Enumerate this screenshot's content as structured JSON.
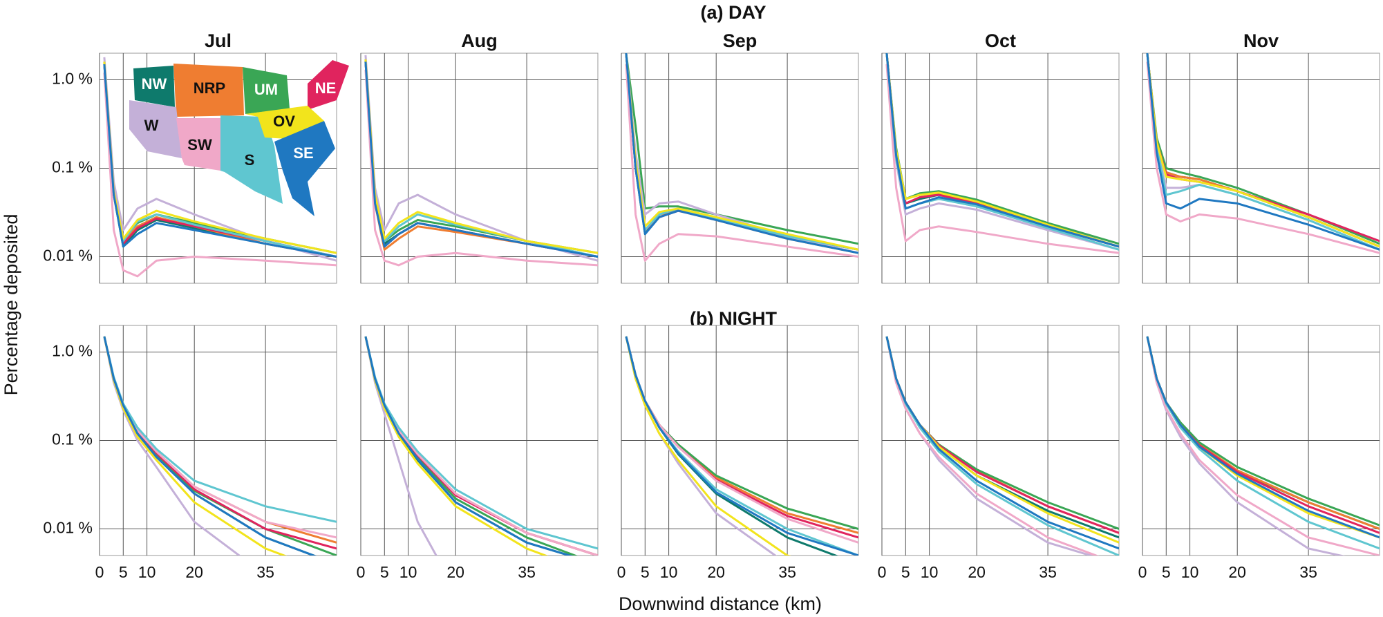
{
  "figure": {
    "rows": [
      "(a)  DAY",
      "(b)  NIGHT"
    ],
    "columns": [
      "Jul",
      "Aug",
      "Sep",
      "Oct",
      "Nov"
    ],
    "xlabel": "Downwind distance (km)",
    "ylabel": "Percentage deposited",
    "xlim": [
      0,
      50
    ],
    "xticks": [
      0,
      5,
      10,
      20,
      35
    ],
    "ylim": [
      0.005,
      2
    ],
    "yticks": [
      {
        "value": 0.01,
        "label": "0.01 %"
      },
      {
        "value": 0.1,
        "label": "0.1 %"
      },
      {
        "value": 1,
        "label": "1.0 %"
      }
    ],
    "log_y": true,
    "grid": true,
    "x": [
      1,
      3,
      5,
      8,
      12,
      20,
      35,
      50
    ]
  },
  "regions": [
    {
      "name": "NW",
      "color": "#0e7a6c"
    },
    {
      "name": "NRP",
      "color": "#ef7d31"
    },
    {
      "name": "UM",
      "color": "#3aa655"
    },
    {
      "name": "NE",
      "color": "#e0245e"
    },
    {
      "name": "W",
      "color": "#c4b0d8"
    },
    {
      "name": "SW",
      "color": "#f0a8c8"
    },
    {
      "name": "S",
      "color": "#5fc6d0"
    },
    {
      "name": "OV",
      "color": "#f2e41c"
    },
    {
      "name": "SE",
      "color": "#1f78c1"
    }
  ],
  "chart_data": [
    {
      "type": "line",
      "series": [
        {
          "values": [
            1.5,
            0.05,
            0.013,
            0.02,
            0.026,
            0.021,
            0.014,
            0.01
          ]
        },
        {
          "values": [
            1.6,
            0.05,
            0.015,
            0.022,
            0.028,
            0.022,
            0.014,
            0.01
          ]
        },
        {
          "values": [
            1.6,
            0.055,
            0.016,
            0.024,
            0.03,
            0.024,
            0.016,
            0.011
          ]
        },
        {
          "values": [
            1.5,
            0.05,
            0.014,
            0.021,
            0.027,
            0.022,
            0.015,
            0.01
          ]
        },
        {
          "values": [
            1.8,
            0.07,
            0.02,
            0.035,
            0.045,
            0.03,
            0.015,
            0.009
          ]
        },
        {
          "values": [
            1.2,
            0.02,
            0.007,
            0.006,
            0.009,
            0.01,
            0.009,
            0.008
          ]
        },
        {
          "values": [
            1.5,
            0.05,
            0.015,
            0.025,
            0.03,
            0.023,
            0.015,
            0.01
          ]
        },
        {
          "values": [
            1.6,
            0.055,
            0.016,
            0.026,
            0.033,
            0.025,
            0.016,
            0.011
          ]
        },
        {
          "values": [
            1.5,
            0.05,
            0.013,
            0.018,
            0.024,
            0.02,
            0.014,
            0.01
          ]
        }
      ]
    },
    {
      "type": "line",
      "series": [
        {
          "values": [
            1.6,
            0.04,
            0.014,
            0.018,
            0.024,
            0.02,
            0.014,
            0.01
          ]
        },
        {
          "values": [
            1.7,
            0.04,
            0.012,
            0.016,
            0.022,
            0.019,
            0.014,
            0.01
          ]
        },
        {
          "values": [
            1.7,
            0.045,
            0.015,
            0.02,
            0.026,
            0.022,
            0.015,
            0.011
          ]
        },
        {
          "values": [
            1.6,
            0.04,
            0.013,
            0.018,
            0.024,
            0.02,
            0.014,
            0.01
          ]
        },
        {
          "values": [
            1.9,
            0.06,
            0.02,
            0.04,
            0.05,
            0.03,
            0.015,
            0.009
          ]
        },
        {
          "values": [
            1.3,
            0.02,
            0.009,
            0.008,
            0.01,
            0.011,
            0.009,
            0.008
          ]
        },
        {
          "values": [
            1.6,
            0.045,
            0.015,
            0.022,
            0.03,
            0.023,
            0.015,
            0.01
          ]
        },
        {
          "values": [
            1.7,
            0.05,
            0.016,
            0.024,
            0.032,
            0.024,
            0.015,
            0.011
          ]
        },
        {
          "values": [
            1.6,
            0.04,
            0.013,
            0.018,
            0.024,
            0.02,
            0.014,
            0.01
          ]
        }
      ]
    },
    {
      "type": "line",
      "series": [
        {
          "values": [
            2,
            0.1,
            0.018,
            0.03,
            0.035,
            0.027,
            0.017,
            0.012
          ]
        },
        {
          "values": [
            2,
            0.12,
            0.02,
            0.03,
            0.033,
            0.026,
            0.016,
            0.011
          ]
        },
        {
          "values": [
            2,
            0.3,
            0.035,
            0.037,
            0.037,
            0.03,
            0.02,
            0.014
          ]
        },
        {
          "values": [
            2,
            0.1,
            0.02,
            0.028,
            0.033,
            0.027,
            0.017,
            0.012
          ]
        },
        {
          "values": [
            2,
            0.15,
            0.03,
            0.04,
            0.042,
            0.03,
            0.017,
            0.011
          ]
        },
        {
          "values": [
            1.5,
            0.03,
            0.009,
            0.014,
            0.018,
            0.017,
            0.013,
            0.01
          ]
        },
        {
          "values": [
            2,
            0.1,
            0.02,
            0.03,
            0.035,
            0.027,
            0.017,
            0.012
          ]
        },
        {
          "values": [
            2,
            0.12,
            0.022,
            0.032,
            0.035,
            0.028,
            0.018,
            0.012
          ]
        },
        {
          "values": [
            2,
            0.1,
            0.018,
            0.028,
            0.033,
            0.026,
            0.016,
            0.011
          ]
        }
      ]
    },
    {
      "type": "line",
      "series": [
        {
          "values": [
            2,
            0.15,
            0.04,
            0.045,
            0.05,
            0.04,
            0.022,
            0.013
          ]
        },
        {
          "values": [
            2,
            0.16,
            0.045,
            0.05,
            0.052,
            0.042,
            0.023,
            0.013
          ]
        },
        {
          "values": [
            2,
            0.17,
            0.045,
            0.052,
            0.055,
            0.044,
            0.024,
            0.014
          ]
        },
        {
          "values": [
            2,
            0.15,
            0.04,
            0.047,
            0.05,
            0.04,
            0.022,
            0.013
          ]
        },
        {
          "values": [
            2,
            0.12,
            0.03,
            0.035,
            0.04,
            0.034,
            0.02,
            0.012
          ]
        },
        {
          "values": [
            1.5,
            0.06,
            0.015,
            0.02,
            0.022,
            0.019,
            0.014,
            0.011
          ]
        },
        {
          "values": [
            2,
            0.13,
            0.035,
            0.04,
            0.045,
            0.037,
            0.021,
            0.012
          ]
        },
        {
          "values": [
            2,
            0.16,
            0.045,
            0.05,
            0.053,
            0.042,
            0.023,
            0.013
          ]
        },
        {
          "values": [
            2,
            0.14,
            0.035,
            0.04,
            0.047,
            0.039,
            0.022,
            0.013
          ]
        }
      ]
    },
    {
      "type": "line",
      "series": [
        {
          "values": [
            2,
            0.2,
            0.09,
            0.08,
            0.075,
            0.055,
            0.028,
            0.013
          ]
        },
        {
          "values": [
            2,
            0.2,
            0.09,
            0.08,
            0.075,
            0.055,
            0.028,
            0.013
          ]
        },
        {
          "values": [
            2,
            0.22,
            0.1,
            0.09,
            0.08,
            0.06,
            0.03,
            0.014
          ]
        },
        {
          "values": [
            2,
            0.2,
            0.085,
            0.075,
            0.07,
            0.055,
            0.03,
            0.015
          ]
        },
        {
          "values": [
            2,
            0.18,
            0.06,
            0.06,
            0.065,
            0.05,
            0.026,
            0.012
          ]
        },
        {
          "values": [
            1.6,
            0.1,
            0.03,
            0.025,
            0.03,
            0.027,
            0.018,
            0.011
          ]
        },
        {
          "values": [
            2,
            0.18,
            0.05,
            0.055,
            0.065,
            0.05,
            0.026,
            0.012
          ]
        },
        {
          "values": [
            2,
            0.2,
            0.08,
            0.075,
            0.07,
            0.055,
            0.028,
            0.013
          ]
        },
        {
          "values": [
            2,
            0.15,
            0.04,
            0.035,
            0.045,
            0.04,
            0.023,
            0.012
          ]
        }
      ]
    },
    {
      "type": "line",
      "series": [
        {
          "values": [
            1.5,
            0.5,
            0.25,
            0.13,
            0.07,
            0.025,
            0.008,
            0.004
          ]
        },
        {
          "values": [
            1.5,
            0.5,
            0.25,
            0.13,
            0.075,
            0.03,
            0.012,
            0.007
          ]
        },
        {
          "values": [
            1.5,
            0.5,
            0.25,
            0.13,
            0.07,
            0.027,
            0.01,
            0.005
          ]
        },
        {
          "values": [
            1.5,
            0.5,
            0.25,
            0.13,
            0.072,
            0.028,
            0.01,
            0.006
          ]
        },
        {
          "values": [
            1.5,
            0.45,
            0.22,
            0.1,
            0.05,
            0.012,
            0.003,
            0.002
          ]
        },
        {
          "values": [
            1.5,
            0.5,
            0.25,
            0.13,
            0.075,
            0.03,
            0.012,
            0.008
          ]
        },
        {
          "values": [
            1.5,
            0.52,
            0.26,
            0.14,
            0.08,
            0.035,
            0.018,
            0.012
          ]
        },
        {
          "values": [
            1.5,
            0.48,
            0.23,
            0.11,
            0.06,
            0.02,
            0.006,
            0.003
          ]
        },
        {
          "values": [
            1.5,
            0.5,
            0.25,
            0.12,
            0.065,
            0.025,
            0.008,
            0.004
          ]
        }
      ]
    },
    {
      "type": "line",
      "series": [
        {
          "values": [
            1.5,
            0.5,
            0.25,
            0.12,
            0.06,
            0.02,
            0.007,
            0.004
          ]
        },
        {
          "values": [
            1.5,
            0.5,
            0.25,
            0.13,
            0.07,
            0.025,
            0.009,
            0.005
          ]
        },
        {
          "values": [
            1.5,
            0.5,
            0.25,
            0.12,
            0.065,
            0.022,
            0.008,
            0.004
          ]
        },
        {
          "values": [
            1.5,
            0.5,
            0.25,
            0.13,
            0.068,
            0.024,
            0.009,
            0.005
          ]
        },
        {
          "values": [
            1.5,
            0.45,
            0.2,
            0.06,
            0.012,
            0.002,
            0.001,
            0.001
          ]
        },
        {
          "values": [
            1.5,
            0.5,
            0.25,
            0.13,
            0.07,
            0.025,
            0.009,
            0.005
          ]
        },
        {
          "values": [
            1.5,
            0.52,
            0.26,
            0.14,
            0.075,
            0.028,
            0.01,
            0.006
          ]
        },
        {
          "values": [
            1.5,
            0.48,
            0.23,
            0.11,
            0.055,
            0.018,
            0.006,
            0.003
          ]
        },
        {
          "values": [
            1.5,
            0.5,
            0.25,
            0.12,
            0.062,
            0.02,
            0.007,
            0.004
          ]
        }
      ]
    },
    {
      "type": "line",
      "series": [
        {
          "values": [
            1.5,
            0.55,
            0.28,
            0.14,
            0.07,
            0.025,
            0.008,
            0.004
          ]
        },
        {
          "values": [
            1.5,
            0.55,
            0.28,
            0.15,
            0.085,
            0.038,
            0.015,
            0.009
          ]
        },
        {
          "values": [
            1.5,
            0.55,
            0.28,
            0.15,
            0.09,
            0.04,
            0.017,
            0.01
          ]
        },
        {
          "values": [
            1.5,
            0.55,
            0.28,
            0.15,
            0.085,
            0.036,
            0.014,
            0.008
          ]
        },
        {
          "values": [
            1.5,
            0.5,
            0.25,
            0.12,
            0.055,
            0.015,
            0.004,
            0.002
          ]
        },
        {
          "values": [
            1.5,
            0.55,
            0.28,
            0.15,
            0.085,
            0.035,
            0.013,
            0.007
          ]
        },
        {
          "values": [
            1.5,
            0.55,
            0.28,
            0.14,
            0.075,
            0.028,
            0.01,
            0.005
          ]
        },
        {
          "values": [
            1.5,
            0.5,
            0.25,
            0.12,
            0.06,
            0.018,
            0.005,
            0.003
          ]
        },
        {
          "values": [
            1.5,
            0.55,
            0.28,
            0.14,
            0.072,
            0.026,
            0.009,
            0.005
          ]
        }
      ]
    },
    {
      "type": "line",
      "series": [
        {
          "values": [
            1.5,
            0.5,
            0.27,
            0.15,
            0.085,
            0.04,
            0.016,
            0.008
          ]
        },
        {
          "values": [
            1.5,
            0.5,
            0.27,
            0.15,
            0.09,
            0.045,
            0.018,
            0.009
          ]
        },
        {
          "values": [
            1.5,
            0.5,
            0.27,
            0.15,
            0.09,
            0.047,
            0.02,
            0.01
          ]
        },
        {
          "values": [
            1.5,
            0.5,
            0.27,
            0.15,
            0.088,
            0.044,
            0.018,
            0.009
          ]
        },
        {
          "values": [
            1.5,
            0.45,
            0.23,
            0.12,
            0.06,
            0.022,
            0.007,
            0.004
          ]
        },
        {
          "values": [
            1.5,
            0.45,
            0.23,
            0.12,
            0.065,
            0.025,
            0.008,
            0.004
          ]
        },
        {
          "values": [
            1.5,
            0.5,
            0.26,
            0.14,
            0.075,
            0.032,
            0.011,
            0.005
          ]
        },
        {
          "values": [
            1.5,
            0.5,
            0.27,
            0.15,
            0.085,
            0.04,
            0.015,
            0.007
          ]
        },
        {
          "values": [
            1.5,
            0.5,
            0.27,
            0.15,
            0.08,
            0.035,
            0.012,
            0.006
          ]
        }
      ]
    },
    {
      "type": "line",
      "series": [
        {
          "values": [
            1.5,
            0.5,
            0.27,
            0.15,
            0.09,
            0.045,
            0.02,
            0.01
          ]
        },
        {
          "values": [
            1.5,
            0.5,
            0.27,
            0.15,
            0.09,
            0.046,
            0.02,
            0.01
          ]
        },
        {
          "values": [
            1.5,
            0.5,
            0.27,
            0.16,
            0.095,
            0.05,
            0.022,
            0.011
          ]
        },
        {
          "values": [
            1.5,
            0.5,
            0.27,
            0.15,
            0.088,
            0.044,
            0.018,
            0.009
          ]
        },
        {
          "values": [
            1.5,
            0.45,
            0.22,
            0.11,
            0.055,
            0.02,
            0.006,
            0.004
          ]
        },
        {
          "values": [
            1.5,
            0.45,
            0.23,
            0.12,
            0.06,
            0.024,
            0.008,
            0.005
          ]
        },
        {
          "values": [
            1.5,
            0.5,
            0.26,
            0.14,
            0.08,
            0.035,
            0.012,
            0.006
          ]
        },
        {
          "values": [
            1.5,
            0.5,
            0.27,
            0.15,
            0.085,
            0.04,
            0.015,
            0.008
          ]
        },
        {
          "values": [
            1.5,
            0.5,
            0.27,
            0.15,
            0.085,
            0.042,
            0.016,
            0.008
          ]
        }
      ]
    }
  ]
}
